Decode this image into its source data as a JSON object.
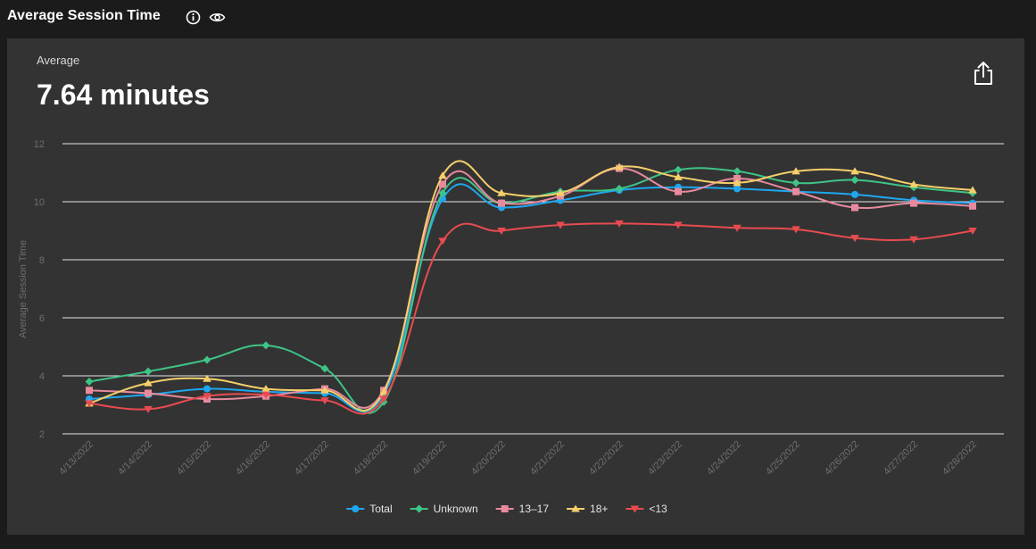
{
  "header": {
    "title": "Average Session Time",
    "info_icon": "info-icon",
    "view_icon": "eye-icon"
  },
  "summary": {
    "label": "Average",
    "value": "7.64 minutes",
    "share_icon": "share-icon"
  },
  "chart_data": {
    "type": "line",
    "title": "",
    "xlabel": "",
    "ylabel": "Average Session Time",
    "ylim": [
      2,
      12
    ],
    "yticks": [
      2,
      4,
      6,
      8,
      10,
      12
    ],
    "grid": true,
    "legend_position": "bottom-center",
    "categories": [
      "4/13/2022",
      "4/14/2022",
      "4/15/2022",
      "4/16/2022",
      "4/17/2022",
      "4/18/2022",
      "4/19/2022",
      "4/20/2022",
      "4/21/2022",
      "4/22/2022",
      "4/23/2022",
      "4/24/2022",
      "4/25/2022",
      "4/26/2022",
      "4/27/2022",
      "4/28/2022"
    ],
    "series": [
      {
        "name": "Total",
        "color": "#1ea7f0",
        "marker": "circle",
        "values": [
          3.2,
          3.35,
          3.55,
          3.45,
          3.4,
          3.35,
          10.1,
          9.8,
          10.05,
          10.4,
          10.5,
          10.45,
          10.35,
          10.25,
          10.05,
          9.95
        ]
      },
      {
        "name": "Unknown",
        "color": "#3ec486",
        "marker": "diamond",
        "values": [
          3.8,
          4.15,
          4.55,
          5.05,
          4.25,
          3.1,
          10.3,
          9.95,
          10.35,
          10.45,
          11.1,
          11.05,
          10.65,
          10.75,
          10.5,
          10.3
        ]
      },
      {
        "name": "13–17",
        "color": "#e88a9e",
        "marker": "square",
        "values": [
          3.5,
          3.4,
          3.2,
          3.3,
          3.55,
          3.5,
          10.6,
          9.95,
          10.2,
          11.15,
          10.35,
          10.8,
          10.35,
          9.8,
          9.95,
          9.85
        ]
      },
      {
        "name": "18+",
        "color": "#f5cf6a",
        "marker": "triangle-up",
        "values": [
          3.05,
          3.75,
          3.9,
          3.55,
          3.5,
          3.45,
          10.9,
          10.3,
          10.3,
          11.2,
          10.85,
          10.65,
          11.05,
          11.05,
          10.6,
          10.4
        ]
      },
      {
        "name": "<13",
        "color": "#e84b4f",
        "marker": "triangle-down",
        "values": [
          3.05,
          2.85,
          3.3,
          3.35,
          3.15,
          3.2,
          8.65,
          9.0,
          9.2,
          9.25,
          9.2,
          9.1,
          9.05,
          8.75,
          8.7,
          9.0
        ]
      }
    ]
  }
}
